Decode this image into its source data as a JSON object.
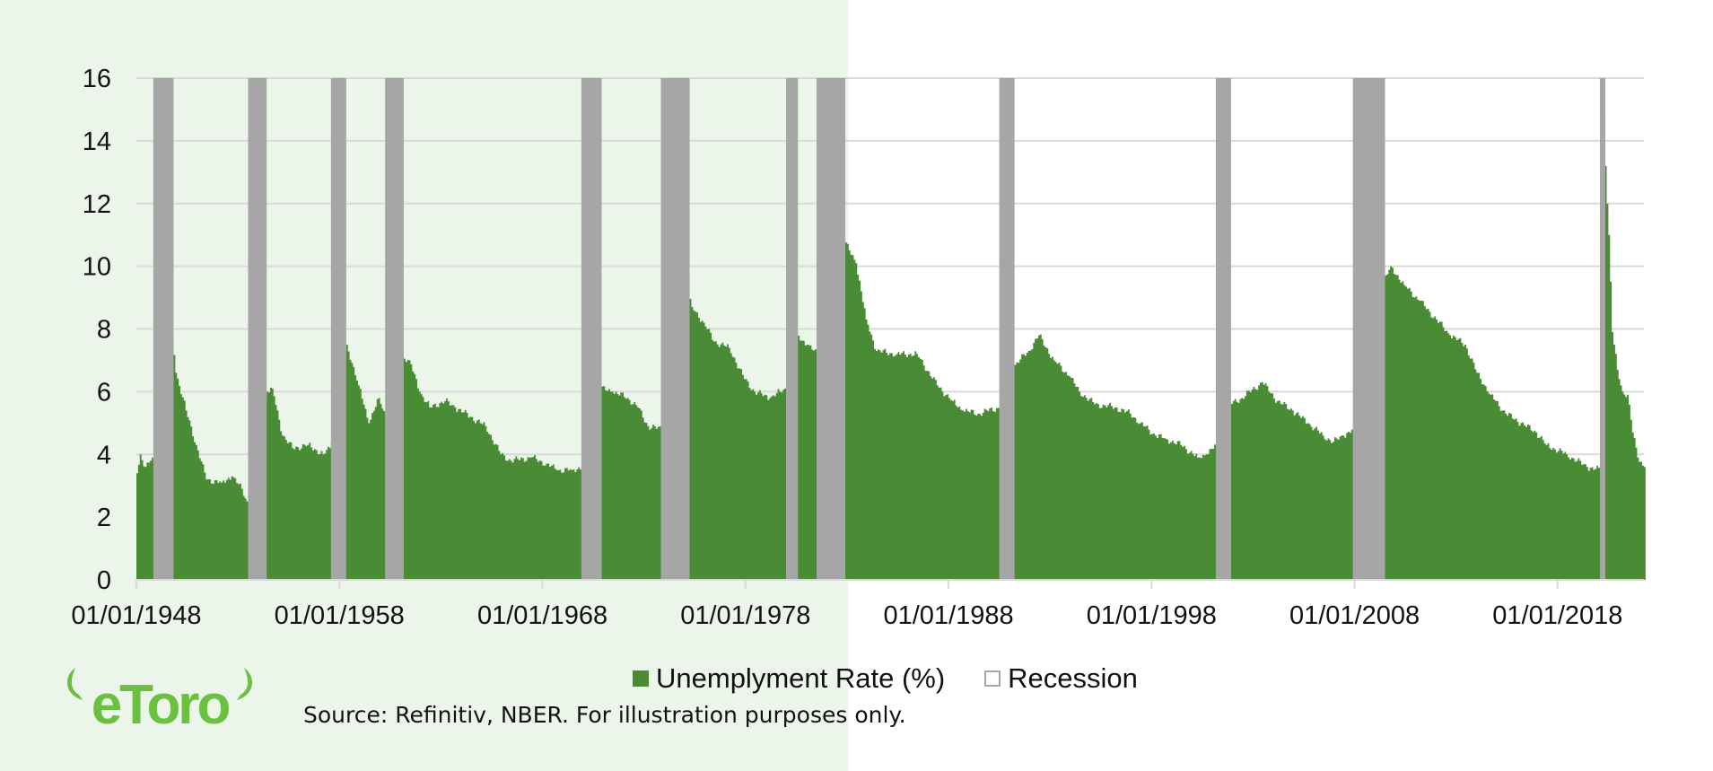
{
  "colors": {
    "unemployment": "#4a8b35",
    "recession": "#a6a6a6",
    "grid": "#d9d9d9",
    "logo": "#6cc03f",
    "panel": "#ebf5ea"
  },
  "logo_text": "eToro",
  "source": "Source: Refinitiv, NBER. For illustration purposes only.",
  "chart_data": {
    "type": "area",
    "title": "",
    "xlabel": "",
    "ylabel": "",
    "ylim": [
      0,
      16
    ],
    "xlim": [
      "1948-01",
      "2022-04"
    ],
    "grid": "horizontal",
    "legend_position": "bottom",
    "yticks": [
      "0",
      "2",
      "4",
      "6",
      "8",
      "10",
      "12",
      "14",
      "16"
    ],
    "xticks": [
      "01/01/1948",
      "01/01/1958",
      "01/01/1968",
      "01/01/1978",
      "01/01/1988",
      "01/01/1998",
      "01/01/2008",
      "01/01/2018"
    ],
    "legend": [
      "Unemplyment Rate (%)",
      "Recession"
    ],
    "series": [
      {
        "name": "Unemplyment Rate (%)",
        "type": "area",
        "points": [
          [
            "1948-01",
            3.4
          ],
          [
            "1948-03",
            4.0
          ],
          [
            "1948-06",
            3.6
          ],
          [
            "1948-09",
            3.8
          ],
          [
            "1948-11",
            3.8
          ],
          [
            "1949-10",
            7.9
          ],
          [
            "1949-12",
            6.6
          ],
          [
            "1950-06",
            5.4
          ],
          [
            "1950-12",
            4.3
          ],
          [
            "1951-06",
            3.2
          ],
          [
            "1952-03",
            3.1
          ],
          [
            "1952-09",
            3.3
          ],
          [
            "1953-03",
            2.9
          ],
          [
            "1953-06",
            2.5
          ],
          [
            "1954-06",
            6.0
          ],
          [
            "1954-09",
            6.1
          ],
          [
            "1955-03",
            4.6
          ],
          [
            "1955-09",
            4.2
          ],
          [
            "1956-06",
            4.3
          ],
          [
            "1957-03",
            4.0
          ],
          [
            "1957-07",
            4.2
          ],
          [
            "1958-05",
            7.5
          ],
          [
            "1958-12",
            6.2
          ],
          [
            "1959-06",
            5.0
          ],
          [
            "1959-12",
            5.8
          ],
          [
            "1960-04",
            5.2
          ],
          [
            "1961-02",
            7.1
          ],
          [
            "1961-06",
            7.0
          ],
          [
            "1961-12",
            6.0
          ],
          [
            "1962-06",
            5.5
          ],
          [
            "1963-03",
            5.7
          ],
          [
            "1963-09",
            5.5
          ],
          [
            "1964-06",
            5.2
          ],
          [
            "1965-03",
            4.9
          ],
          [
            "1965-12",
            4.0
          ],
          [
            "1966-06",
            3.8
          ],
          [
            "1967-06",
            3.9
          ],
          [
            "1968-03",
            3.7
          ],
          [
            "1968-09",
            3.5
          ],
          [
            "1969-06",
            3.5
          ],
          [
            "1969-12",
            3.6
          ],
          [
            "1970-11",
            6.1
          ],
          [
            "1971-06",
            6.0
          ],
          [
            "1972-03",
            5.8
          ],
          [
            "1972-09",
            5.5
          ],
          [
            "1973-03",
            4.9
          ],
          [
            "1973-11",
            4.8
          ],
          [
            "1975-03",
            9.0
          ],
          [
            "1975-05",
            8.7
          ],
          [
            "1975-12",
            8.2
          ],
          [
            "1976-06",
            7.6
          ],
          [
            "1977-03",
            7.4
          ],
          [
            "1977-12",
            6.4
          ],
          [
            "1978-06",
            6.0
          ],
          [
            "1979-03",
            5.8
          ],
          [
            "1979-09",
            6.0
          ],
          [
            "1980-01",
            6.1
          ],
          [
            "1980-07",
            7.8
          ],
          [
            "1981-01",
            7.5
          ],
          [
            "1981-07",
            7.2
          ],
          [
            "1982-11",
            10.8
          ],
          [
            "1983-06",
            10.1
          ],
          [
            "1983-12",
            8.3
          ],
          [
            "1984-06",
            7.3
          ],
          [
            "1985-06",
            7.2
          ],
          [
            "1986-06",
            7.2
          ],
          [
            "1987-06",
            6.2
          ],
          [
            "1988-03",
            5.7
          ],
          [
            "1988-09",
            5.4
          ],
          [
            "1989-06",
            5.3
          ],
          [
            "1990-07",
            5.5
          ],
          [
            "1991-03",
            6.8
          ],
          [
            "1991-12",
            7.3
          ],
          [
            "1992-06",
            7.8
          ],
          [
            "1993-03",
            7.0
          ],
          [
            "1993-12",
            6.5
          ],
          [
            "1994-06",
            6.0
          ],
          [
            "1995-03",
            5.6
          ],
          [
            "1996-03",
            5.5
          ],
          [
            "1996-12",
            5.3
          ],
          [
            "1997-06",
            5.0
          ],
          [
            "1998-03",
            4.6
          ],
          [
            "1998-09",
            4.5
          ],
          [
            "1999-06",
            4.3
          ],
          [
            "2000-04",
            3.9
          ],
          [
            "2000-09",
            4.0
          ],
          [
            "2001-03",
            4.3
          ],
          [
            "2001-11",
            5.6
          ],
          [
            "2002-06",
            5.8
          ],
          [
            "2003-06",
            6.3
          ],
          [
            "2004-03",
            5.7
          ],
          [
            "2004-12",
            5.4
          ],
          [
            "2005-09",
            5.0
          ],
          [
            "2006-06",
            4.6
          ],
          [
            "2006-12",
            4.4
          ],
          [
            "2007-06",
            4.6
          ],
          [
            "2007-12",
            4.8
          ],
          [
            "2009-06",
            9.5
          ],
          [
            "2009-10",
            10.0
          ],
          [
            "2010-06",
            9.4
          ],
          [
            "2011-03",
            8.9
          ],
          [
            "2012-01",
            8.3
          ],
          [
            "2012-09",
            7.8
          ],
          [
            "2013-06",
            7.5
          ],
          [
            "2014-01",
            6.6
          ],
          [
            "2014-09",
            5.9
          ],
          [
            "2015-06",
            5.3
          ],
          [
            "2016-03",
            5.0
          ],
          [
            "2016-12",
            4.7
          ],
          [
            "2017-06",
            4.3
          ],
          [
            "2018-06",
            4.0
          ],
          [
            "2019-06",
            3.6
          ],
          [
            "2020-02",
            3.5
          ],
          [
            "2020-04",
            14.7
          ],
          [
            "2020-05",
            13.2
          ],
          [
            "2020-07",
            11.0
          ],
          [
            "2020-09",
            7.9
          ],
          [
            "2020-12",
            6.7
          ],
          [
            "2021-03",
            6.0
          ],
          [
            "2021-06",
            5.9
          ],
          [
            "2021-09",
            4.7
          ],
          [
            "2021-12",
            3.9
          ],
          [
            "2022-04",
            3.6
          ]
        ]
      },
      {
        "name": "Recession",
        "type": "band",
        "periods": [
          [
            "1948-11",
            "1949-10"
          ],
          [
            "1953-07",
            "1954-05"
          ],
          [
            "1957-08",
            "1958-04"
          ],
          [
            "1960-04",
            "1961-02"
          ],
          [
            "1969-12",
            "1970-11"
          ],
          [
            "1973-11",
            "1975-03"
          ],
          [
            "1980-01",
            "1980-07"
          ],
          [
            "1981-07",
            "1982-11"
          ],
          [
            "1990-07",
            "1991-03"
          ],
          [
            "2001-03",
            "2001-11"
          ],
          [
            "2007-12",
            "2009-06"
          ],
          [
            "2020-02",
            "2020-04"
          ]
        ]
      }
    ]
  }
}
